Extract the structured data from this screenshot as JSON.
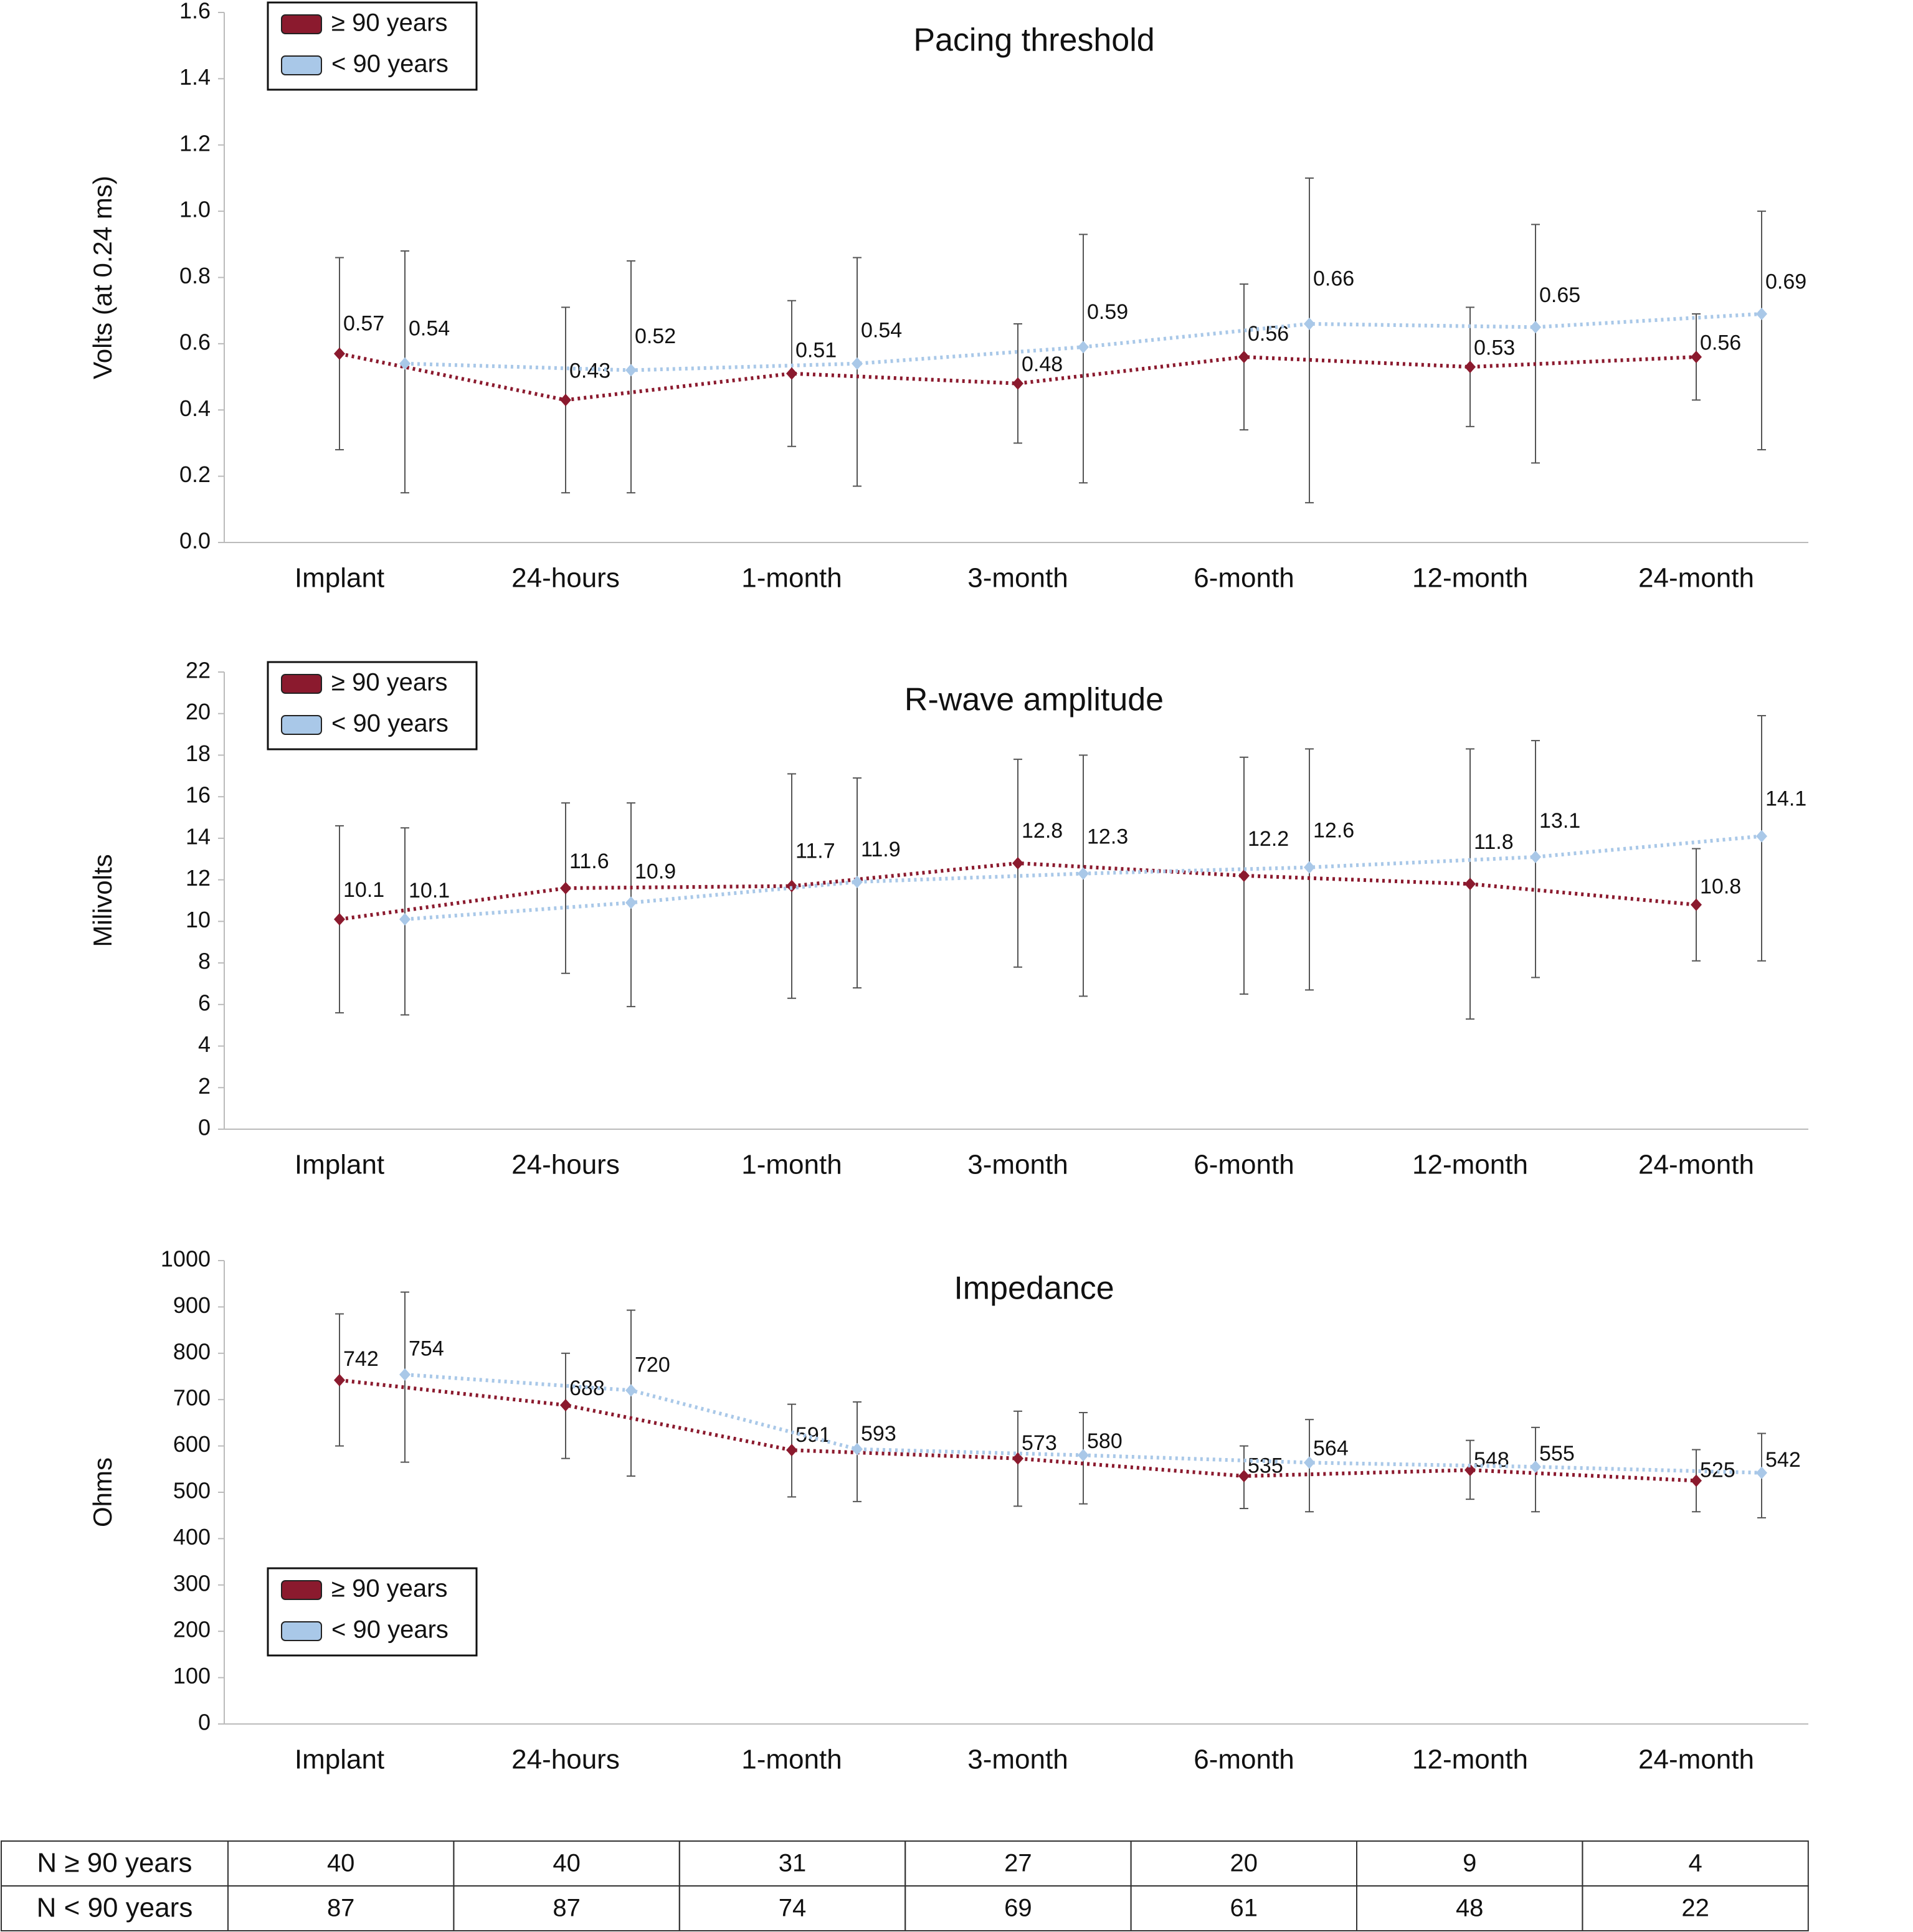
{
  "chart_data": [
    {
      "type": "line",
      "title": "Pacing threshold",
      "y_label": "Volts  (at 0.24 ms)",
      "categories": [
        "Implant",
        "24-hours",
        "1-month",
        "3-month",
        "6-month",
        "12-month",
        "24-month"
      ],
      "ylim": [
        0,
        1.6
      ],
      "yticks": [
        {
          "value": 0,
          "label": "0.0"
        },
        0.2,
        0.4,
        0.6,
        0.8,
        {
          "value": 1,
          "label": "1.0"
        },
        1.2,
        1.4,
        1.6
      ],
      "legend": "top-left",
      "series": [
        {
          "name": "≥ 90 years",
          "color": "#8b1a2e",
          "values": [
            0.57,
            0.43,
            0.51,
            0.48,
            0.56,
            0.53,
            0.56
          ],
          "lower": [
            0.28,
            0.15,
            0.29,
            0.3,
            0.34,
            0.35,
            0.43
          ],
          "upper": [
            0.86,
            0.71,
            0.73,
            0.66,
            0.78,
            0.71,
            0.69
          ]
        },
        {
          "name": "< 90 years",
          "color": "#a9c8e8",
          "values": [
            0.54,
            0.52,
            0.54,
            0.59,
            0.66,
            0.65,
            0.69
          ],
          "lower": [
            0.15,
            0.15,
            0.17,
            0.18,
            0.12,
            0.24,
            0.28
          ],
          "upper": [
            0.88,
            0.85,
            0.86,
            0.93,
            1.1,
            0.96,
            1.0
          ]
        }
      ]
    },
    {
      "type": "line",
      "title": "R-wave amplitude",
      "y_label": "Milivolts",
      "categories": [
        "Implant",
        "24-hours",
        "1-month",
        "3-month",
        "6-month",
        "12-month",
        "24-month"
      ],
      "ylim": [
        0,
        22
      ],
      "yticks": [
        0,
        2,
        4,
        6,
        8,
        10,
        12,
        14,
        16,
        18,
        20,
        22
      ],
      "legend": "top-left",
      "series": [
        {
          "name": "≥ 90 years",
          "color": "#8b1a2e",
          "values": [
            10.1,
            11.6,
            11.7,
            12.8,
            12.2,
            11.8,
            10.8
          ],
          "lower": [
            5.6,
            7.5,
            6.3,
            7.8,
            6.5,
            5.3,
            8.1
          ],
          "upper": [
            14.6,
            15.7,
            17.1,
            17.8,
            17.9,
            18.3,
            13.5
          ]
        },
        {
          "name": "< 90 years",
          "color": "#a9c8e8",
          "values": [
            10.1,
            10.9,
            11.9,
            12.3,
            12.6,
            13.1,
            14.1
          ],
          "lower": [
            5.5,
            5.9,
            6.8,
            6.4,
            6.7,
            7.3,
            8.1
          ],
          "upper": [
            14.5,
            15.7,
            16.9,
            18.0,
            18.3,
            18.7,
            19.9
          ]
        }
      ]
    },
    {
      "type": "line",
      "title": "Impedance",
      "y_label": "Ohms",
      "categories": [
        "Implant",
        "24-hours",
        "1-month",
        "3-month",
        "6-month",
        "12-month",
        "24-month"
      ],
      "ylim": [
        0,
        1000
      ],
      "yticks": [
        0,
        100,
        200,
        300,
        400,
        500,
        600,
        700,
        800,
        900,
        1000
      ],
      "legend": "bottom-left",
      "series": [
        {
          "name": "≥ 90 years",
          "color": "#8b1a2e",
          "values": [
            742,
            688,
            591,
            573,
            535,
            548,
            525
          ],
          "lower": [
            600,
            573,
            490,
            470,
            465,
            485,
            458
          ],
          "upper": [
            885,
            800,
            690,
            675,
            600,
            612,
            592
          ]
        },
        {
          "name": "< 90 years",
          "color": "#a9c8e8",
          "values": [
            754,
            720,
            593,
            580,
            564,
            555,
            542
          ],
          "lower": [
            565,
            535,
            480,
            475,
            458,
            458,
            445
          ],
          "upper": [
            932,
            893,
            695,
            672,
            657,
            640,
            627
          ]
        }
      ]
    }
  ],
  "table": {
    "rows": [
      [
        "N ≥ 90 years",
        40,
        40,
        31,
        27,
        20,
        9,
        4
      ],
      [
        "N < 90 years",
        87,
        87,
        74,
        69,
        61,
        48,
        22
      ]
    ]
  }
}
